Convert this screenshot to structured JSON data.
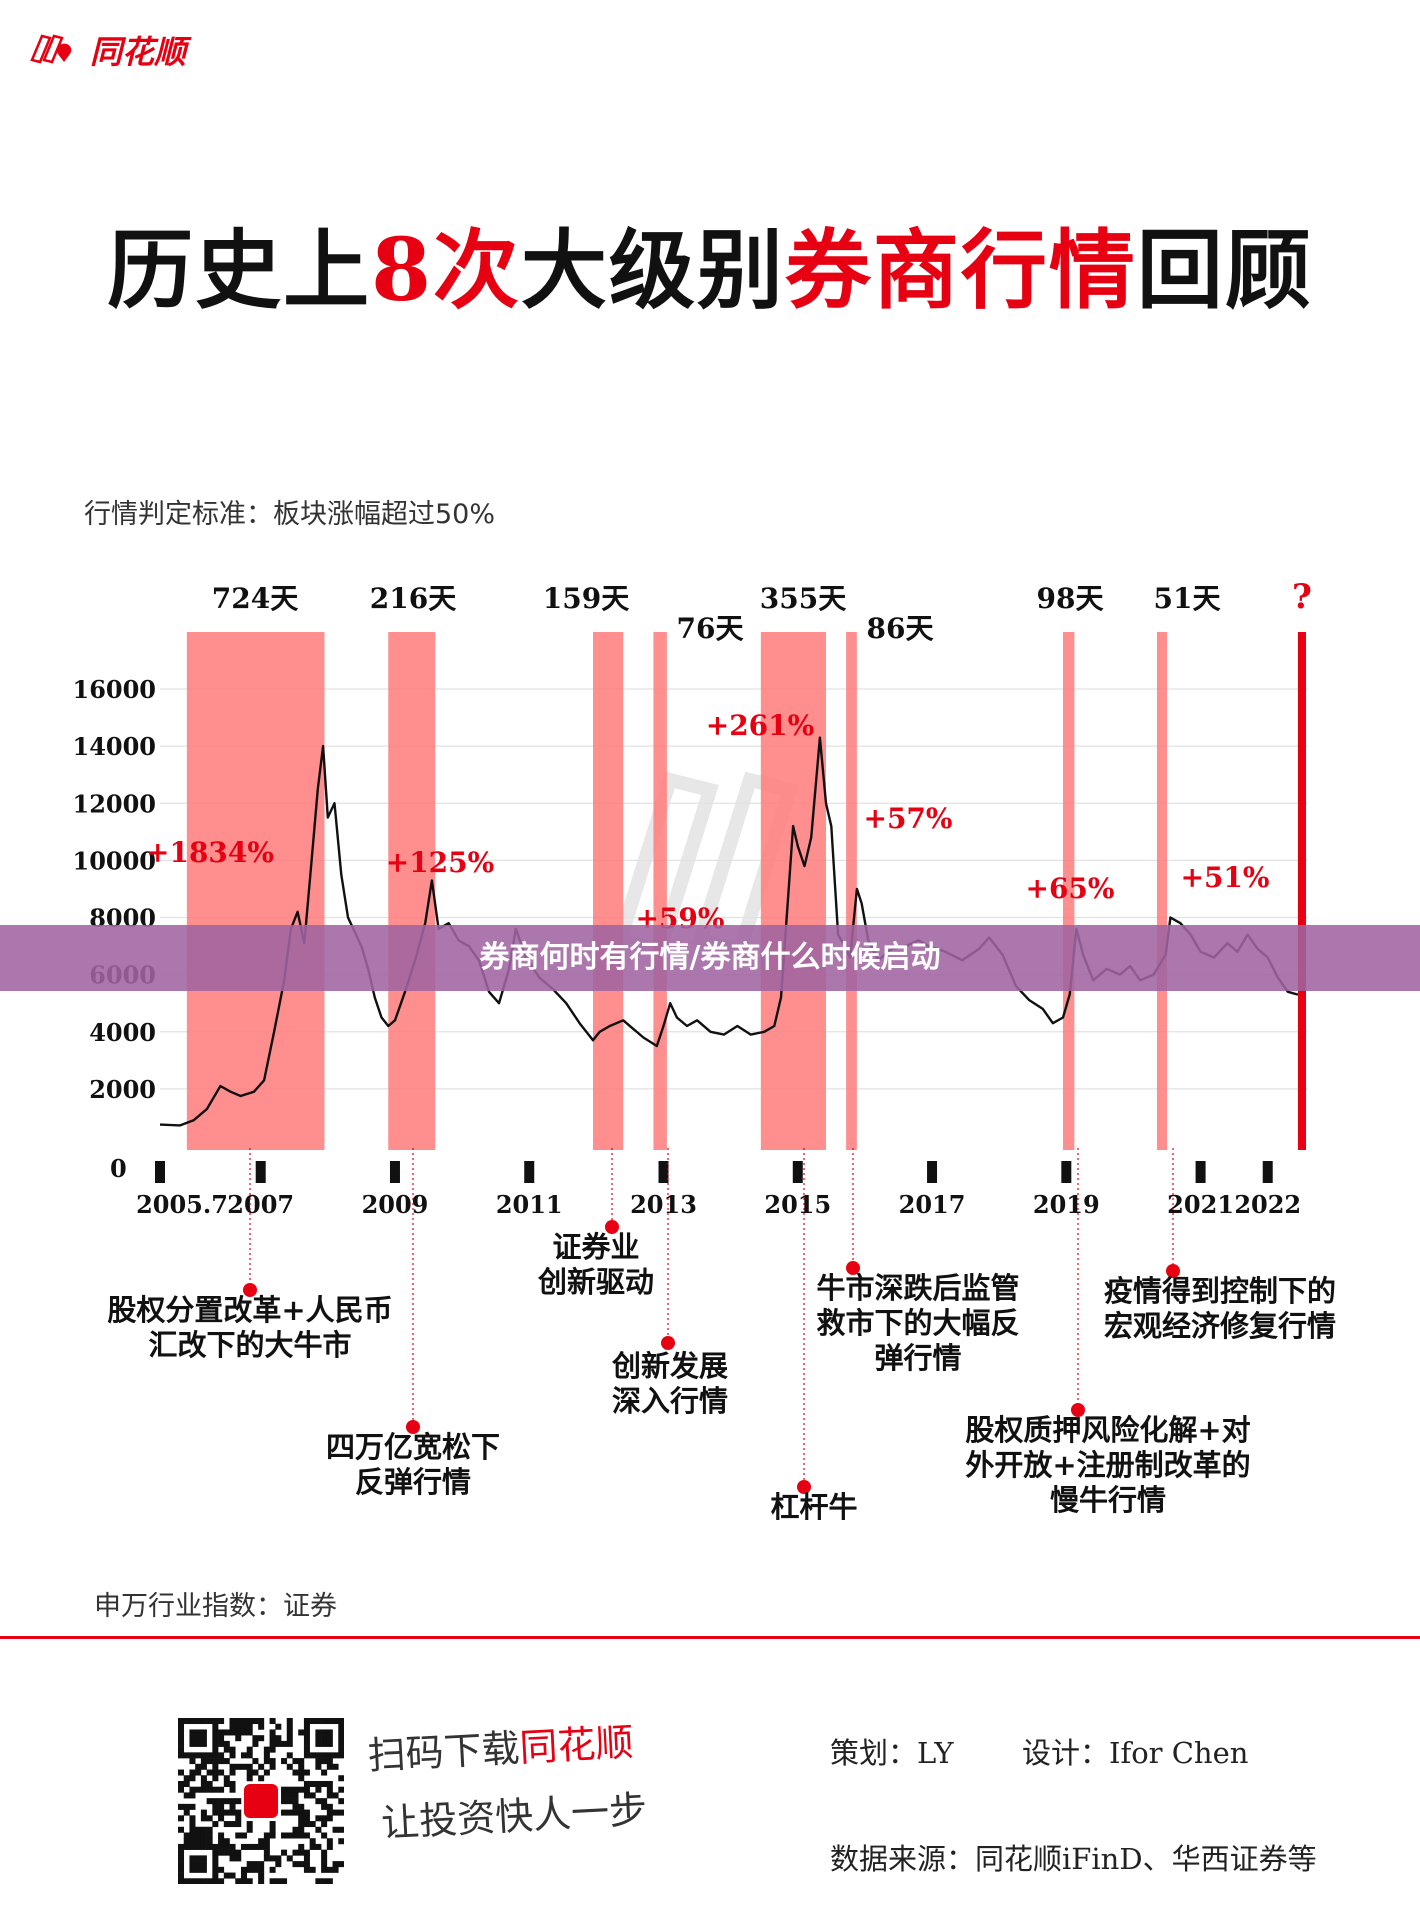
{
  "brand": {
    "name": "同花顺",
    "logo_icon": "tonghuashun-logo-icon",
    "color": "#e60012"
  },
  "title": {
    "part1": "历史上",
    "part2": "8次",
    "part3": "大级别",
    "part4": "券商行情",
    "part5": "回顾"
  },
  "criteria": "行情判定标准：板块涨幅超过50%",
  "banner": "券商何时有行情/券商什么时候启动",
  "index_label": "申万行业指数：证券",
  "footer": {
    "qr_icon": "qr-code-icon",
    "slogan_line1_a": "扫码下载",
    "slogan_line1_b": "同花顺",
    "slogan_line2": "让投资快人一步",
    "planner": "策划：LY",
    "designer": "设计：Ifor Chen",
    "source": "数据来源：同花顺iFinD、华西证券等"
  },
  "chart_data": {
    "type": "line",
    "ylim": [
      0,
      16000
    ],
    "yticks": [
      "0",
      "2000",
      "4000",
      "6000",
      "8000",
      "10000",
      "12000",
      "14000",
      "16000"
    ],
    "xlim": [
      2005.5,
      2022.6
    ],
    "xticks": [
      {
        "label": "2005.7",
        "x": 2005.5
      },
      {
        "label": "2007",
        "x": 2007.0
      },
      {
        "label": "2009",
        "x": 2009.0
      },
      {
        "label": "2011",
        "x": 2011.0
      },
      {
        "label": "2013",
        "x": 2013.0
      },
      {
        "label": "2015",
        "x": 2015.0
      },
      {
        "label": "2017",
        "x": 2017.0
      },
      {
        "label": "2019",
        "x": 2019.0
      },
      {
        "label": "2021",
        "x": 2021.0
      },
      {
        "label": "2022",
        "x": 2022.0
      }
    ],
    "series": [
      {
        "color": "#111111",
        "points": [
          [
            2005.5,
            750
          ],
          [
            2005.8,
            720
          ],
          [
            2006.0,
            900
          ],
          [
            2006.2,
            1300
          ],
          [
            2006.4,
            2100
          ],
          [
            2006.55,
            1900
          ],
          [
            2006.7,
            1750
          ],
          [
            2006.9,
            1900
          ],
          [
            2007.05,
            2300
          ],
          [
            2007.2,
            4000
          ],
          [
            2007.35,
            5800
          ],
          [
            2007.45,
            7600
          ],
          [
            2007.55,
            8200
          ],
          [
            2007.65,
            7100
          ],
          [
            2007.75,
            9800
          ],
          [
            2007.85,
            12500
          ],
          [
            2007.93,
            14000
          ],
          [
            2008.0,
            11500
          ],
          [
            2008.1,
            12000
          ],
          [
            2008.2,
            9500
          ],
          [
            2008.3,
            8000
          ],
          [
            2008.4,
            7500
          ],
          [
            2008.5,
            7000
          ],
          [
            2008.6,
            6200
          ],
          [
            2008.7,
            5200
          ],
          [
            2008.8,
            4500
          ],
          [
            2008.9,
            4200
          ],
          [
            2009.0,
            4400
          ],
          [
            2009.15,
            5400
          ],
          [
            2009.3,
            6500
          ],
          [
            2009.45,
            7800
          ],
          [
            2009.55,
            9300
          ],
          [
            2009.65,
            7600
          ],
          [
            2009.8,
            7800
          ],
          [
            2009.95,
            7200
          ],
          [
            2010.1,
            7000
          ],
          [
            2010.25,
            6500
          ],
          [
            2010.4,
            5400
          ],
          [
            2010.55,
            5000
          ],
          [
            2010.7,
            6200
          ],
          [
            2010.8,
            7600
          ],
          [
            2010.95,
            6600
          ],
          [
            2011.15,
            5900
          ],
          [
            2011.35,
            5500
          ],
          [
            2011.55,
            5000
          ],
          [
            2011.75,
            4300
          ],
          [
            2011.95,
            3700
          ],
          [
            2012.05,
            4000
          ],
          [
            2012.2,
            4200
          ],
          [
            2012.4,
            4400
          ],
          [
            2012.55,
            4100
          ],
          [
            2012.7,
            3800
          ],
          [
            2012.9,
            3500
          ],
          [
            2013.0,
            4200
          ],
          [
            2013.1,
            5000
          ],
          [
            2013.2,
            4500
          ],
          [
            2013.35,
            4200
          ],
          [
            2013.5,
            4400
          ],
          [
            2013.7,
            4000
          ],
          [
            2013.9,
            3900
          ],
          [
            2014.1,
            4200
          ],
          [
            2014.3,
            3900
          ],
          [
            2014.5,
            4000
          ],
          [
            2014.65,
            4200
          ],
          [
            2014.75,
            5200
          ],
          [
            2014.85,
            8500
          ],
          [
            2014.93,
            11200
          ],
          [
            2015.0,
            10500
          ],
          [
            2015.1,
            9800
          ],
          [
            2015.2,
            10800
          ],
          [
            2015.33,
            14300
          ],
          [
            2015.42,
            12000
          ],
          [
            2015.5,
            11200
          ],
          [
            2015.6,
            7400
          ],
          [
            2015.7,
            7000
          ],
          [
            2015.78,
            6600
          ],
          [
            2015.88,
            9000
          ],
          [
            2015.95,
            8500
          ],
          [
            2016.05,
            7200
          ],
          [
            2016.2,
            6500
          ],
          [
            2016.4,
            6900
          ],
          [
            2016.6,
            7000
          ],
          [
            2016.8,
            7200
          ],
          [
            2016.95,
            7000
          ],
          [
            2017.2,
            6800
          ],
          [
            2017.45,
            6500
          ],
          [
            2017.7,
            6900
          ],
          [
            2017.85,
            7300
          ],
          [
            2018.05,
            6700
          ],
          [
            2018.25,
            5600
          ],
          [
            2018.45,
            5100
          ],
          [
            2018.65,
            4800
          ],
          [
            2018.8,
            4300
          ],
          [
            2018.95,
            4500
          ],
          [
            2019.05,
            5300
          ],
          [
            2019.15,
            7600
          ],
          [
            2019.25,
            6700
          ],
          [
            2019.4,
            5800
          ],
          [
            2019.6,
            6200
          ],
          [
            2019.8,
            6000
          ],
          [
            2019.95,
            6300
          ],
          [
            2020.1,
            5800
          ],
          [
            2020.3,
            6000
          ],
          [
            2020.48,
            6700
          ],
          [
            2020.55,
            8000
          ],
          [
            2020.7,
            7800
          ],
          [
            2020.85,
            7400
          ],
          [
            2021.0,
            6800
          ],
          [
            2021.2,
            6600
          ],
          [
            2021.4,
            7100
          ],
          [
            2021.55,
            6800
          ],
          [
            2021.7,
            7400
          ],
          [
            2021.85,
            6900
          ],
          [
            2022.0,
            6600
          ],
          [
            2022.15,
            5900
          ],
          [
            2022.3,
            5400
          ],
          [
            2022.45,
            5300
          ]
        ]
      }
    ],
    "periods": [
      {
        "start": 2005.9,
        "end": 2007.95,
        "days": "724天",
        "gain": "+1834%",
        "event": "股权分置改革+人民币汇改下的大牛市"
      },
      {
        "start": 2008.9,
        "end": 2009.6,
        "days": "216天",
        "gain": "+125%",
        "event": "四万亿宽松下反弹行情"
      },
      {
        "start": 2011.95,
        "end": 2012.4,
        "days": "159天",
        "gain": "",
        "event": "证券业创新驱动"
      },
      {
        "start": 2012.85,
        "end": 2013.05,
        "days": "76天",
        "gain": "+59%",
        "event": "创新发展深入行情"
      },
      {
        "start": 2014.45,
        "end": 2015.42,
        "days": "355天",
        "gain": "+261%",
        "event": "杠杆牛"
      },
      {
        "start": 2015.72,
        "end": 2015.88,
        "days": "86天",
        "gain": "+57%",
        "event": "牛市深跌后监管救市下的大幅反弹行情"
      },
      {
        "start": 2018.95,
        "end": 2019.12,
        "days": "98天",
        "gain": "+65%",
        "event": "股权质押风险化解+对外开放+注册制改革的慢牛行情"
      },
      {
        "start": 2020.35,
        "end": 2020.5,
        "days": "51天",
        "gain": "+51%",
        "event": "疫情得到控制下的宏观经济修复行情"
      },
      {
        "start": 2022.45,
        "end": 2022.57,
        "days": "?",
        "gain": "",
        "event": ""
      }
    ]
  }
}
